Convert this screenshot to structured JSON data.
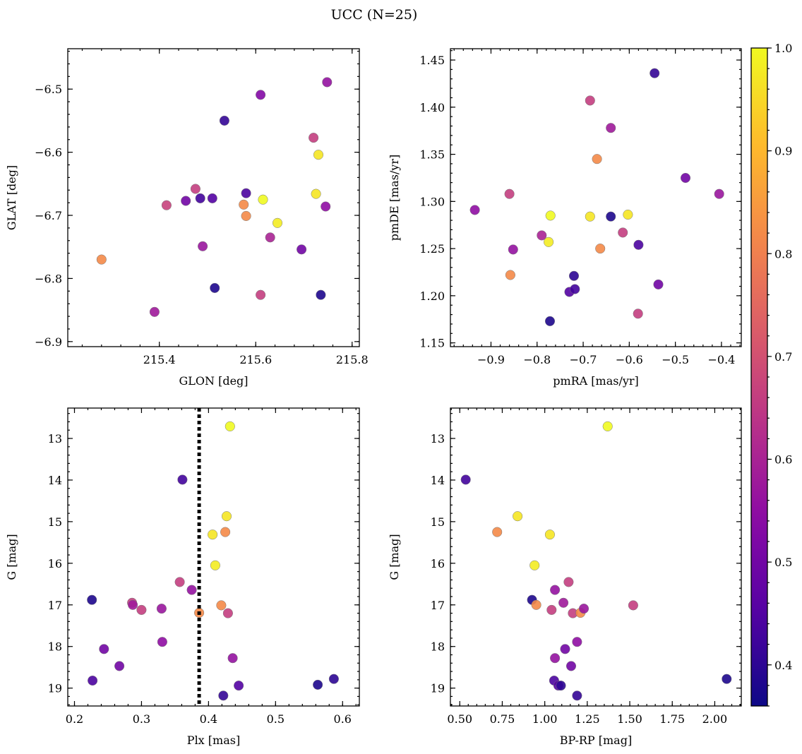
{
  "figure_title": "UCC (N=25)",
  "colorbar": {
    "min": 0.36,
    "max": 1.0,
    "ticks": [
      0.4,
      0.5,
      0.6,
      0.7,
      0.8,
      0.9,
      1.0
    ],
    "tick_labels": [
      "0.4",
      "0.5",
      "0.6",
      "0.7",
      "0.8",
      "0.9",
      "1.0"
    ],
    "colormap": "plasma"
  },
  "chart_data": [
    {
      "type": "scatter",
      "id": "glon-glat",
      "xlabel": "GLON [deg]",
      "ylabel": "GLAT [deg]",
      "xlim": [
        215.21,
        215.815
      ],
      "ylim": [
        -6.908,
        -6.436
      ],
      "xticks": [
        215.4,
        215.6,
        215.8
      ],
      "xtick_labels": [
        "215.4",
        "215.6",
        "215.8"
      ],
      "yticks": [
        -6.5,
        -6.6,
        -6.7,
        -6.8,
        -6.9
      ],
      "ytick_labels": [
        "−6.5",
        "−6.6",
        "−6.7",
        "−6.8",
        "−6.9"
      ],
      "y_inverted": false,
      "x": [
        215.28,
        215.39,
        215.415,
        215.455,
        215.475,
        215.485,
        215.49,
        215.51,
        215.515,
        215.535,
        215.575,
        215.58,
        215.58,
        215.61,
        215.61,
        215.615,
        215.63,
        215.645,
        215.695,
        215.72,
        215.725,
        215.73,
        215.735,
        215.745,
        215.748
      ],
      "y": [
        -6.77,
        -6.853,
        -6.684,
        -6.677,
        -6.658,
        -6.673,
        -6.749,
        -6.673,
        -6.815,
        -6.55,
        -6.683,
        -6.665,
        -6.701,
        -6.509,
        -6.826,
        -6.675,
        -6.735,
        -6.712,
        -6.754,
        -6.577,
        -6.666,
        -6.604,
        -6.826,
        -6.686,
        -6.489
      ],
      "c": [
        0.82,
        0.58,
        0.67,
        0.5,
        0.66,
        0.43,
        0.57,
        0.45,
        0.38,
        0.41,
        0.82,
        0.44,
        0.82,
        0.53,
        0.66,
        1.0,
        0.6,
        0.98,
        0.5,
        0.66,
        0.97,
        0.97,
        0.38,
        0.55,
        0.56
      ]
    },
    {
      "type": "scatter",
      "id": "pmra-pmde",
      "xlabel": "pmRA [mas/yr]",
      "ylabel": "pmDE [mas/yr]",
      "xlim": [
        -0.988,
        -0.357
      ],
      "ylim": [
        1.146,
        1.462
      ],
      "xticks": [
        -0.9,
        -0.8,
        -0.7,
        -0.6,
        -0.5,
        -0.4
      ],
      "xtick_labels": [
        "−0.9",
        "−0.8",
        "−0.7",
        "−0.6",
        "−0.5",
        "−0.4"
      ],
      "yticks": [
        1.15,
        1.2,
        1.25,
        1.3,
        1.35,
        1.4,
        1.45
      ],
      "ytick_labels": [
        "1.15",
        "1.20",
        "1.25",
        "1.30",
        "1.35",
        "1.40",
        "1.45"
      ],
      "y_inverted": false,
      "x": [
        -0.935,
        -0.86,
        -0.858,
        -0.852,
        -0.79,
        -0.775,
        -0.772,
        -0.771,
        -0.73,
        -0.72,
        -0.718,
        -0.685,
        -0.685,
        -0.67,
        -0.663,
        -0.64,
        -0.64,
        -0.614,
        -0.603,
        -0.581,
        -0.58,
        -0.545,
        -0.537,
        -0.478,
        -0.405
      ],
      "y": [
        1.291,
        1.308,
        1.222,
        1.249,
        1.264,
        1.257,
        1.173,
        1.285,
        1.204,
        1.221,
        1.207,
        1.284,
        1.407,
        1.345,
        1.25,
        1.284,
        1.378,
        1.267,
        1.286,
        1.181,
        1.254,
        1.436,
        1.212,
        1.325,
        1.308
      ],
      "c": [
        0.55,
        0.66,
        0.82,
        0.56,
        0.6,
        0.98,
        0.38,
        1.0,
        0.45,
        0.4,
        0.43,
        0.97,
        0.66,
        0.82,
        0.82,
        0.38,
        0.58,
        0.66,
        0.97,
        0.66,
        0.44,
        0.41,
        0.5,
        0.5,
        0.57
      ]
    },
    {
      "type": "scatter",
      "id": "plx-g",
      "xlabel": "Plx [mas]",
      "ylabel": "G [mag]",
      "xlim": [
        0.19,
        0.625
      ],
      "ylim": [
        19.43,
        12.27
      ],
      "xticks": [
        0.2,
        0.3,
        0.4,
        0.5,
        0.6
      ],
      "xtick_labels": [
        "0.2",
        "0.3",
        "0.4",
        "0.5",
        "0.6"
      ],
      "yticks": [
        13,
        14,
        15,
        16,
        17,
        18,
        19
      ],
      "ytick_labels": [
        "13",
        "14",
        "15",
        "16",
        "17",
        "18",
        "19"
      ],
      "y_inverted": true,
      "vline": {
        "x": 0.386,
        "style": "dotted"
      },
      "x": [
        0.226,
        0.227,
        0.244,
        0.267,
        0.286,
        0.287,
        0.3,
        0.33,
        0.331,
        0.357,
        0.361,
        0.375,
        0.386,
        0.406,
        0.41,
        0.419,
        0.422,
        0.425,
        0.427,
        0.429,
        0.432,
        0.436,
        0.445,
        0.563,
        0.587
      ],
      "y": [
        16.88,
        18.82,
        18.06,
        18.47,
        16.95,
        17.0,
        17.12,
        17.09,
        17.89,
        16.45,
        13.99,
        16.64,
        17.19,
        15.31,
        16.05,
        17.01,
        19.18,
        15.25,
        14.87,
        17.2,
        12.71,
        18.28,
        18.94,
        18.92,
        18.78
      ],
      "c": [
        0.38,
        0.44,
        0.5,
        0.5,
        0.66,
        0.58,
        0.66,
        0.57,
        0.55,
        0.66,
        0.43,
        0.56,
        0.82,
        0.97,
        0.98,
        0.82,
        0.41,
        0.82,
        0.97,
        0.66,
        1.0,
        0.56,
        0.45,
        0.38,
        0.4
      ]
    },
    {
      "type": "scatter",
      "id": "bprp-g",
      "xlabel": "BP-RP [mag]",
      "ylabel": "G [mag]",
      "xlim": [
        0.445,
        2.156
      ],
      "ylim": [
        19.43,
        12.27
      ],
      "xticks": [
        0.5,
        0.75,
        1.0,
        1.25,
        1.5,
        1.75,
        2.0
      ],
      "xtick_labels": [
        "0.50",
        "0.75",
        "1.00",
        "1.25",
        "1.50",
        "1.75",
        "2.00"
      ],
      "yticks": [
        13,
        14,
        15,
        16,
        17,
        18,
        19
      ],
      "ytick_labels": [
        "13",
        "14",
        "15",
        "16",
        "17",
        "18",
        "19"
      ],
      "y_inverted": true,
      "x": [
        0.535,
        0.72,
        0.84,
        0.925,
        0.94,
        0.95,
        1.03,
        1.04,
        1.055,
        1.06,
        1.06,
        1.08,
        1.095,
        1.11,
        1.12,
        1.14,
        1.155,
        1.165,
        1.19,
        1.19,
        1.21,
        1.23,
        1.37,
        1.52,
        2.07
      ],
      "y": [
        13.99,
        15.25,
        14.87,
        16.88,
        16.05,
        17.0,
        15.31,
        17.12,
        18.82,
        16.64,
        18.28,
        18.94,
        18.94,
        16.95,
        18.06,
        16.45,
        18.47,
        17.2,
        17.89,
        19.18,
        17.19,
        17.09,
        12.71,
        17.01,
        18.78
      ],
      "c": [
        0.43,
        0.82,
        0.97,
        0.38,
        0.98,
        0.82,
        0.97,
        0.66,
        0.44,
        0.56,
        0.56,
        0.45,
        0.4,
        0.58,
        0.5,
        0.66,
        0.5,
        0.66,
        0.55,
        0.41,
        0.82,
        0.57,
        1.0,
        0.66,
        0.38
      ]
    }
  ]
}
